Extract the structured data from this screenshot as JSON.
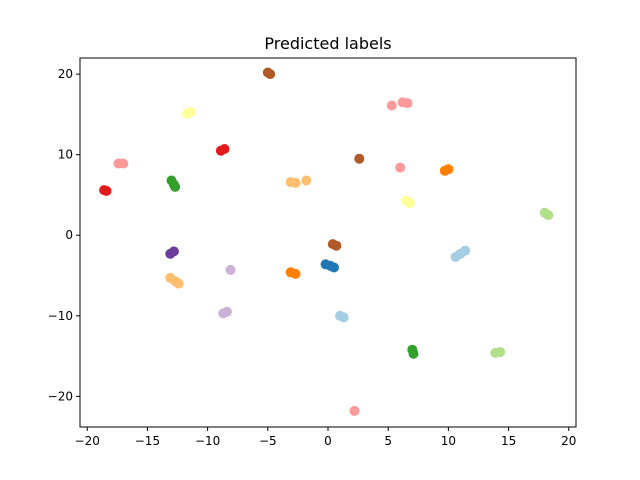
{
  "chart_data": {
    "type": "scatter",
    "title": "Predicted labels",
    "xlabel": "",
    "ylabel": "",
    "xlim": [
      -20.6,
      20.6
    ],
    "ylim": [
      -23.8,
      22.0
    ],
    "xticks": [
      -20,
      -15,
      -10,
      -5,
      0,
      5,
      10,
      15,
      20
    ],
    "xtick_labels": [
      "−20",
      "−15",
      "−10",
      "−5",
      "0",
      "5",
      "10",
      "15",
      "20"
    ],
    "yticks": [
      -20,
      -10,
      0,
      10,
      20
    ],
    "ytick_labels": [
      "−20",
      "−10",
      "0",
      "10",
      "20"
    ],
    "grid": false,
    "legend": "none",
    "clusters": [
      {
        "color": "#a6cee3",
        "points": [
          [
            10.6,
            -2.7
          ],
          [
            11.0,
            -2.3
          ],
          [
            11.4,
            -1.9
          ],
          [
            1.0,
            -10.0
          ],
          [
            1.3,
            -10.2
          ]
        ]
      },
      {
        "color": "#1f78b4",
        "points": [
          [
            -0.2,
            -3.6
          ],
          [
            0.2,
            -3.8
          ],
          [
            0.5,
            -4.0
          ]
        ]
      },
      {
        "color": "#b2df8a",
        "points": [
          [
            18.0,
            2.8
          ],
          [
            18.3,
            2.5
          ],
          [
            13.9,
            -14.6
          ],
          [
            14.3,
            -14.5
          ]
        ]
      },
      {
        "color": "#33a02c",
        "points": [
          [
            -13.0,
            6.8
          ],
          [
            -12.8,
            6.3
          ],
          [
            -12.7,
            6.0
          ],
          [
            7.0,
            -14.2
          ],
          [
            7.1,
            -14.7
          ]
        ]
      },
      {
        "color": "#fb9a99",
        "points": [
          [
            -17.4,
            8.9
          ],
          [
            -17.0,
            8.9
          ],
          [
            5.3,
            16.1
          ],
          [
            6.2,
            16.5
          ],
          [
            6.6,
            16.4
          ],
          [
            6.0,
            8.4
          ],
          [
            2.2,
            -21.8
          ]
        ]
      },
      {
        "color": "#e31a1c",
        "points": [
          [
            -18.6,
            5.6
          ],
          [
            -18.4,
            5.5
          ],
          [
            -8.9,
            10.5
          ],
          [
            -8.6,
            10.7
          ]
        ]
      },
      {
        "color": "#fdbf6f",
        "points": [
          [
            -13.1,
            -5.3
          ],
          [
            -12.7,
            -5.7
          ],
          [
            -12.4,
            -6.0
          ],
          [
            -3.1,
            6.6
          ],
          [
            -2.7,
            6.5
          ],
          [
            -1.8,
            6.8
          ]
        ]
      },
      {
        "color": "#ff7f00",
        "points": [
          [
            -3.1,
            -4.6
          ],
          [
            -2.7,
            -4.8
          ],
          [
            9.7,
            8.0
          ],
          [
            10.0,
            8.2
          ]
        ]
      },
      {
        "color": "#cab2d6",
        "points": [
          [
            -8.1,
            -4.3
          ],
          [
            -8.7,
            -9.7
          ],
          [
            -8.4,
            -9.5
          ]
        ]
      },
      {
        "color": "#6a3d9a",
        "points": [
          [
            -13.1,
            -2.3
          ],
          [
            -12.8,
            -2.0
          ]
        ]
      },
      {
        "color": "#ffff99",
        "points": [
          [
            -11.7,
            15.1
          ],
          [
            -11.4,
            15.3
          ],
          [
            6.5,
            4.3
          ],
          [
            6.8,
            4.0
          ]
        ]
      },
      {
        "color": "#b15928",
        "points": [
          [
            -5.0,
            20.2
          ],
          [
            -4.8,
            20.0
          ],
          [
            2.6,
            9.5
          ],
          [
            0.4,
            -1.1
          ],
          [
            0.7,
            -1.3
          ]
        ]
      }
    ]
  }
}
